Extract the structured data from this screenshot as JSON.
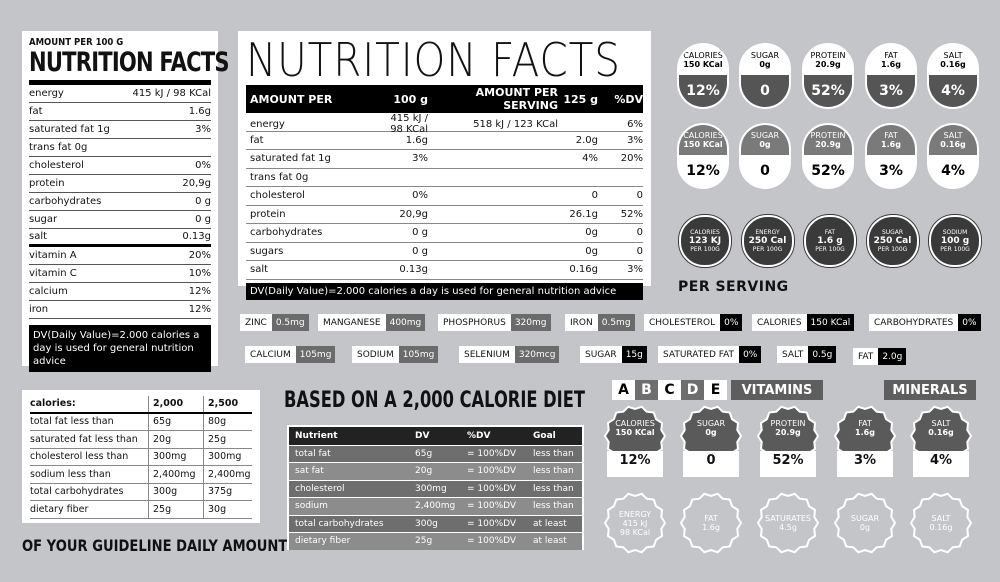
{
  "label1": {
    "amount_per": "AMOUNT PER  100 G",
    "title": "NUTRITION FACTS",
    "rows": [
      {
        "k": "energy",
        "v": "415 kJ / 98 KCal"
      },
      {
        "k": "fat",
        "v": "1.6g"
      },
      {
        "k": "saturated fat 1g",
        "v": "3%"
      },
      {
        "k": "trans fat 0g",
        "v": ""
      },
      {
        "k": "cholesterol",
        "v": "0%"
      },
      {
        "k": "protein",
        "v": "20,9g"
      },
      {
        "k": "carbohydrates",
        "v": "0 g"
      },
      {
        "k": "sugar",
        "v": "0 g"
      },
      {
        "k": "salt",
        "v": "0.13g"
      },
      {
        "k": "vitamin A",
        "v": "20%"
      },
      {
        "k": "vitamin C",
        "v": "10%"
      },
      {
        "k": "calcium",
        "v": "12%"
      },
      {
        "k": "iron",
        "v": "12%"
      }
    ],
    "note": "DV(Daily Value)=2.000 calories a day is used for general nutrition advice"
  },
  "label2": {
    "title": "NUTRITION FACTS",
    "headers": [
      "AMOUNT PER",
      "100 g",
      "AMOUNT PER SERVING",
      "125 g",
      "%DV"
    ],
    "rows": [
      [
        "energy",
        "415 kJ / 98 KCal",
        "518 kJ / 123 KCal",
        "",
        "6%"
      ],
      [
        "fat",
        "1.6g",
        "",
        "2.0g",
        "3%"
      ],
      [
        "saturated fat 1g",
        "3%",
        "",
        "4%",
        "20%"
      ],
      [
        "trans fat 0g",
        "",
        "",
        "",
        ""
      ],
      [
        "cholesterol",
        "0%",
        "",
        "0",
        "0"
      ],
      [
        "protein",
        "20,9g",
        "",
        "26.1g",
        "52%"
      ],
      [
        "carbohydrates",
        "0 g",
        "",
        "0g",
        "0"
      ],
      [
        "sugars",
        "0 g",
        "",
        "0g",
        "0"
      ],
      [
        "salt",
        "0.13g",
        "",
        "0.16g",
        "3%"
      ]
    ],
    "note": "DV(Daily Value)=2.000 calories a day is used for general nutrition advice"
  },
  "pills": [
    {
      "name": "CALORIES",
      "val": "150 KCal",
      "pct": "12%"
    },
    {
      "name": "SUGAR",
      "val": "0g",
      "pct": "0"
    },
    {
      "name": "PROTEIN",
      "val": "20.9g",
      "pct": "52%"
    },
    {
      "name": "FAT",
      "val": "1.6g",
      "pct": "3%"
    },
    {
      "name": "SALT",
      "val": "0.16g",
      "pct": "4%"
    }
  ],
  "circles": [
    {
      "name": "CALORIES",
      "val": "123 KJ",
      "per": "PER 100G"
    },
    {
      "name": "ENERGY",
      "val": "250 Cal",
      "per": "PER 100G"
    },
    {
      "name": "FAT",
      "val": "1.6 g",
      "per": "PER 100G"
    },
    {
      "name": "SUGAR",
      "val": "250 Cal",
      "per": "PER 100G"
    },
    {
      "name": "SODIUM",
      "val": "100 g",
      "per": "PER 100G"
    }
  ],
  "per_serving": "PER SERVING",
  "tags": [
    {
      "k": "ZINC",
      "v": "0.5mg",
      "s": "g"
    },
    {
      "k": "MANGANESE",
      "v": "400mg",
      "s": "g"
    },
    {
      "k": "PHOSPHORUS",
      "v": "320mg",
      "s": "g"
    },
    {
      "k": "IRON",
      "v": "0.5mg",
      "s": "g"
    },
    {
      "k": "CHOLESTEROL",
      "v": "0%",
      "s": "b"
    },
    {
      "k": "CALORIES",
      "v": "150 KCal",
      "s": "b"
    },
    {
      "k": "CARBOHYDRATES",
      "v": "0%",
      "s": "b"
    },
    {
      "k": "CALCIUM",
      "v": "105mg",
      "s": "g"
    },
    {
      "k": "SODIUM",
      "v": "105mg",
      "s": "g"
    },
    {
      "k": "SELENIUM",
      "v": "320mcg",
      "s": "g"
    },
    {
      "k": "SUGAR",
      "v": "15g",
      "s": "b"
    },
    {
      "k": "SATURATED FAT",
      "v": "0%",
      "s": "b"
    },
    {
      "k": "SALT",
      "v": "0.5g",
      "s": "b"
    },
    {
      "k": "FAT",
      "v": "2.0g",
      "s": "b"
    }
  ],
  "label3": {
    "headers": [
      "calories:",
      "2,000",
      "2,500"
    ],
    "rows": [
      [
        "total fat   less than",
        "65g",
        "80g"
      ],
      [
        "saturated fat less than",
        "20g",
        "25g"
      ],
      [
        "cholesterol   less than",
        "300mg",
        "300mg"
      ],
      [
        "sodium   less than",
        "2,400mg",
        "2,400mg"
      ],
      [
        "total carbohydrates",
        "300g",
        "375g"
      ],
      [
        "dietary fiber",
        "25g",
        "30g"
      ]
    ]
  },
  "guideline": "OF YOUR GUIDELINE DAILY AMOUNT",
  "diet_title": "BASED ON A 2,000 CALORIE DIET",
  "table4": {
    "headers": [
      "Nutrient",
      "DV",
      "%DV",
      "Goal"
    ],
    "rows": [
      [
        "total fat",
        "65g",
        "= 100%DV",
        "less than"
      ],
      [
        "sat fat",
        "20g",
        "= 100%DV",
        "less than"
      ],
      [
        "cholesterol",
        "300mg",
        "= 100%DV",
        "less than"
      ],
      [
        "sodium",
        "2,400mg",
        "= 100%DV",
        "less than"
      ],
      [
        "total carbohydrates",
        "300g",
        "= 100%DV",
        "at least"
      ],
      [
        "dietary fiber",
        "25g",
        "= 100%DV",
        "at least"
      ]
    ]
  },
  "letters": [
    "A",
    "B",
    "C",
    "D",
    "E"
  ],
  "vitamins": "VITAMINS",
  "minerals": "MINERALS",
  "wavy_a": [
    {
      "name": "CALORIES",
      "val": "150 KCal",
      "pct": "12%"
    },
    {
      "name": "SUGAR",
      "val": "0g",
      "pct": "0"
    },
    {
      "name": "PROTEIN",
      "val": "20.9g",
      "pct": "52%"
    },
    {
      "name": "FAT",
      "val": "1.6g",
      "pct": "3%"
    },
    {
      "name": "SALT",
      "val": "0.16g",
      "pct": "4%"
    }
  ],
  "wavy_b": [
    {
      "name": "ENERGY",
      "val": "415 kJ",
      "val2": "98 KCal"
    },
    {
      "name": "FAT",
      "val": "1.6g",
      "val2": ""
    },
    {
      "name": "SATURATES",
      "val": "4.5g",
      "val2": ""
    },
    {
      "name": "SUGAR",
      "val": "0g",
      "val2": ""
    },
    {
      "name": "SALT",
      "val": "0.16g",
      "val2": ""
    }
  ]
}
